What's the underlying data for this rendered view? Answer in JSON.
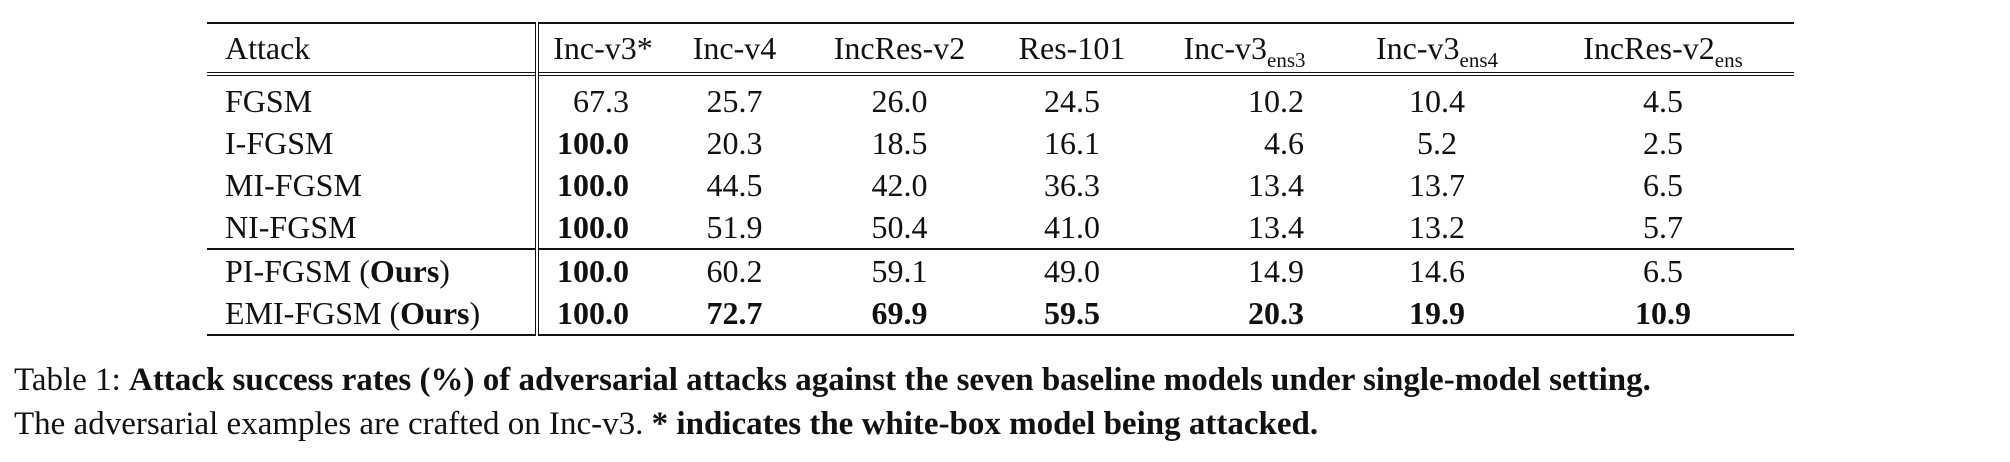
{
  "table": {
    "header": {
      "attack": "Attack",
      "columns": [
        {
          "main": "Inc-v3*",
          "sub": ""
        },
        {
          "main": "Inc-v4",
          "sub": ""
        },
        {
          "main": "IncRes-v2",
          "sub": ""
        },
        {
          "main": "Res-101",
          "sub": ""
        },
        {
          "main": "Inc-v3",
          "sub": "ens3"
        },
        {
          "main": "Inc-v3",
          "sub": "ens4"
        },
        {
          "main": "IncRes-v2",
          "sub": "ens"
        }
      ]
    },
    "rows": [
      {
        "name": "FGSM",
        "values": [
          "67.3",
          "25.7",
          "26.0",
          "24.5",
          "10.2",
          "10.4",
          "4.5"
        ]
      },
      {
        "name": "I-FGSM",
        "values": [
          "100.0",
          "20.3",
          "18.5",
          "16.1",
          "4.6",
          "5.2",
          "2.5"
        ]
      },
      {
        "name": "MI-FGSM",
        "values": [
          "100.0",
          "44.5",
          "42.0",
          "36.3",
          "13.4",
          "13.7",
          "6.5"
        ]
      },
      {
        "name": "NI-FGSM",
        "values": [
          "100.0",
          "51.9",
          "50.4",
          "41.0",
          "13.4",
          "13.2",
          "5.7"
        ]
      },
      {
        "name": "PI-FGSM",
        "suffix": "Ours",
        "values": [
          "100.0",
          "60.2",
          "59.1",
          "49.0",
          "14.9",
          "14.6",
          "6.5"
        ]
      },
      {
        "name": "EMI-FGSM",
        "suffix": "Ours",
        "values": [
          "100.0",
          "72.7",
          "69.9",
          "59.5",
          "20.3",
          "19.9",
          "10.9"
        ]
      }
    ]
  },
  "caption": {
    "label": "Table 1:",
    "title": "Attack success rates (%) of adversarial attacks against the seven baseline models under single-model setting.",
    "body": "The adversarial examples are crafted on Inc-v3.",
    "note": "* indicates the white-box model being attacked."
  }
}
